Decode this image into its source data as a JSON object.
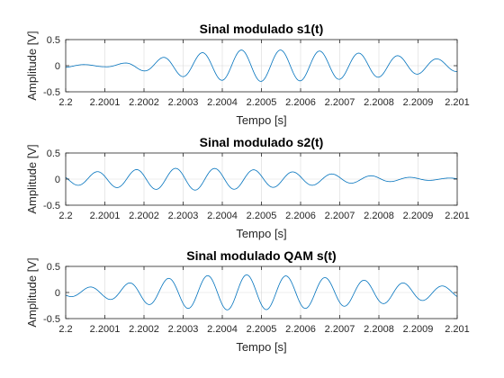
{
  "colors": {
    "line": "#0072bd",
    "grid": "#d9d9d9",
    "axis": "#262626"
  },
  "chart_data": [
    {
      "type": "line",
      "title": "Sinal modulado s1(t)",
      "xlabel": "Tempo [s]",
      "ylabel": "Amplitude [V]",
      "xlim": [
        2.2,
        2.201
      ],
      "ylim": [
        -0.5,
        0.5
      ],
      "xtick_values": [
        2.2,
        2.2001,
        2.2002,
        2.2003,
        2.2004,
        2.2005,
        2.2006,
        2.2007,
        2.2008,
        2.2009,
        2.201
      ],
      "xtick_labels": [
        "2.2",
        "2.2001",
        "2.2002",
        "2.2003",
        "2.2004",
        "2.2005",
        "2.2006",
        "2.2007",
        "2.2008",
        "2.2009",
        "2.201"
      ],
      "ytick_values": [
        -0.5,
        0,
        0.5
      ],
      "ytick_labels": [
        "-0.5",
        "0",
        "0.5"
      ],
      "grid": true,
      "carrier_hz": 10000,
      "phase_deg": 185,
      "envelope": {
        "t": [
          2.2,
          2.20005,
          2.2001,
          2.20015,
          2.2002,
          2.20025,
          2.2003,
          2.20035,
          2.2004,
          2.20045,
          2.2005,
          2.20055,
          2.2006,
          2.20065,
          2.2007,
          2.20075,
          2.2008,
          2.20085,
          2.2009,
          2.20095,
          2.201
        ],
        "values": [
          0.03,
          0.02,
          0.02,
          0.05,
          0.1,
          0.16,
          0.21,
          0.25,
          0.28,
          0.3,
          0.3,
          0.3,
          0.29,
          0.28,
          0.26,
          0.24,
          0.22,
          0.19,
          0.16,
          0.13,
          0.11
        ]
      }
    },
    {
      "type": "line",
      "title": "Sinal modulado s2(t)",
      "xlabel": "Tempo [s]",
      "ylabel": "Amplitude [V]",
      "xlim": [
        2.2,
        2.201
      ],
      "ylim": [
        -0.5,
        0.5
      ],
      "xtick_values": [
        2.2,
        2.2001,
        2.2002,
        2.2003,
        2.2004,
        2.2005,
        2.2006,
        2.2007,
        2.2008,
        2.2009,
        2.201
      ],
      "xtick_labels": [
        "2.2",
        "2.2001",
        "2.2002",
        "2.2003",
        "2.2004",
        "2.2005",
        "2.2006",
        "2.2007",
        "2.2008",
        "2.2009",
        "2.201"
      ],
      "ytick_values": [
        -0.5,
        0,
        0.5
      ],
      "ytick_labels": [
        "-0.5",
        "0",
        "0.5"
      ],
      "grid": true,
      "carrier_hz": 10000,
      "phase_deg": 70,
      "envelope": {
        "t": [
          2.2,
          2.20005,
          2.2001,
          2.20015,
          2.2002,
          2.20025,
          2.2003,
          2.20035,
          2.2004,
          2.20045,
          2.2005,
          2.20055,
          2.2006,
          2.20065,
          2.2007,
          2.20075,
          2.2008,
          2.20085,
          2.2009,
          2.20095,
          2.201
        ],
        "values": [
          0.1,
          0.13,
          0.15,
          0.17,
          0.19,
          0.2,
          0.21,
          0.21,
          0.2,
          0.19,
          0.17,
          0.15,
          0.13,
          0.11,
          0.09,
          0.07,
          0.06,
          0.04,
          0.03,
          0.02,
          0.02
        ]
      }
    },
    {
      "type": "line",
      "title": "Sinal modulado QAM s(t)",
      "xlabel": "Tempo [s]",
      "ylabel": "Amplitude [V]",
      "xlim": [
        2.2,
        2.201
      ],
      "ylim": [
        -0.5,
        0.5
      ],
      "xtick_values": [
        2.2,
        2.2001,
        2.2002,
        2.2003,
        2.2004,
        2.2005,
        2.2006,
        2.2007,
        2.2008,
        2.2009,
        2.201
      ],
      "xtick_labels": [
        "2.2",
        "2.2001",
        "2.2002",
        "2.2003",
        "2.2004",
        "2.2005",
        "2.2006",
        "2.2007",
        "2.2008",
        "2.2009",
        "2.201"
      ],
      "ytick_values": [
        -0.5,
        0,
        0.5
      ],
      "ytick_labels": [
        "-0.5",
        "0",
        "0.5"
      ],
      "grid": true,
      "carrier_hz": 10000,
      "phase_deg": 135,
      "envelope": {
        "t": [
          2.2,
          2.20005,
          2.2001,
          2.20015,
          2.2002,
          2.20025,
          2.2003,
          2.20035,
          2.2004,
          2.20045,
          2.2005,
          2.20055,
          2.2006,
          2.20065,
          2.2007,
          2.20075,
          2.2008,
          2.20085,
          2.2009,
          2.20095,
          2.201
        ],
        "values": [
          0.07,
          0.1,
          0.12,
          0.17,
          0.22,
          0.26,
          0.3,
          0.32,
          0.33,
          0.34,
          0.33,
          0.32,
          0.31,
          0.29,
          0.27,
          0.24,
          0.22,
          0.19,
          0.16,
          0.13,
          0.11
        ]
      }
    }
  ]
}
